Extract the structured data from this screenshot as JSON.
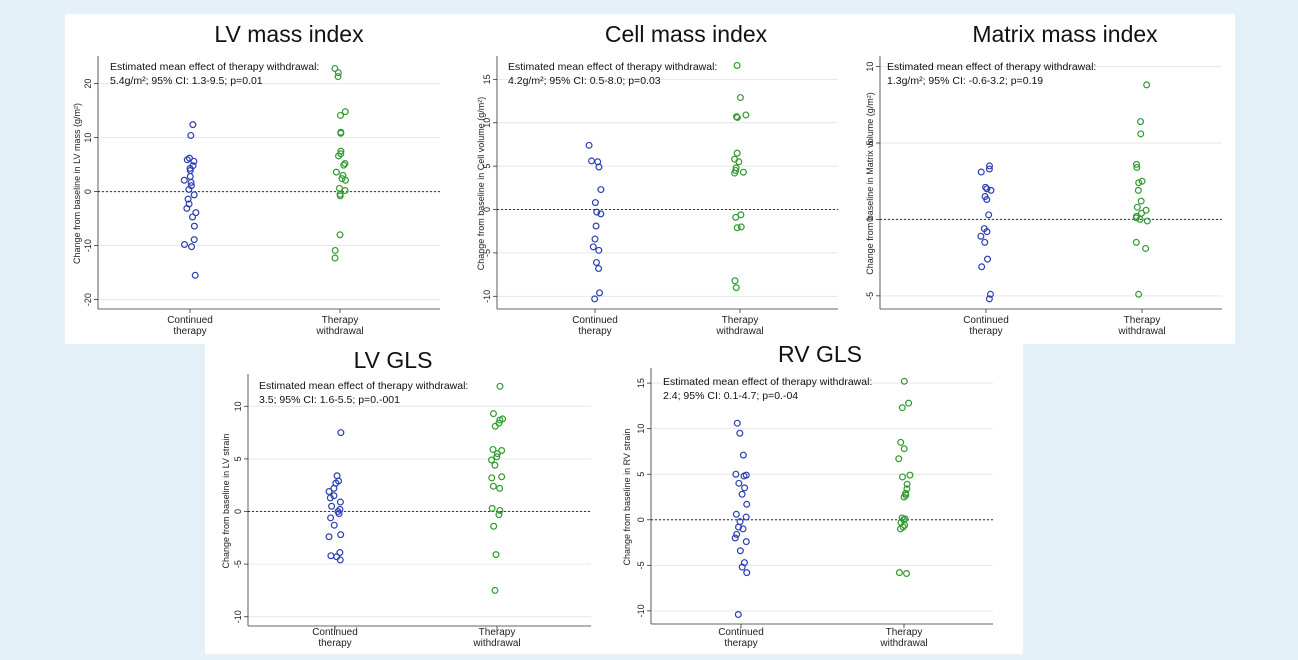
{
  "colors": {
    "page_background": "#e4f1f8",
    "panel_background": "#ffffff",
    "continued": "#2b3fb0",
    "withdrawal": "#2f9a2f",
    "gridline": "#e6e6e6",
    "zero_line": "#333333"
  },
  "chart_data": [
    {
      "type": "scatter",
      "title": "LV mass index",
      "ylabel": "Change from baseline in LV mass (g/m²)",
      "annotation_line1": "Estimated mean effect of therapy withdrawal:",
      "annotation_line2": "5.4g/m²; 95% CI: 1.3-9.5; p=0.01",
      "ylim": [
        -21,
        24
      ],
      "yticks": [
        -20,
        -10,
        0,
        10,
        20
      ],
      "zero_reference_line": true,
      "grid": true,
      "categories": [
        "Continued\ntherapy",
        "Therapy\nwithdrawal"
      ],
      "series": [
        {
          "color": "#2b3fb0",
          "values": [
            12.4,
            10.4,
            6.2,
            5.9,
            5.6,
            4.8,
            4.3,
            3.9,
            2.8,
            2.1,
            1.7,
            1.1,
            0.4,
            -0.6,
            -1.4,
            -2.3,
            -3.1,
            -3.9,
            -4.7,
            -6.4,
            -8.9,
            -9.8,
            -10.2,
            -15.5
          ]
        },
        {
          "color": "#2f9a2f",
          "values": [
            22.8,
            22.0,
            21.3,
            14.8,
            14.1,
            11.0,
            10.8,
            7.5,
            7.0,
            6.6,
            5.2,
            4.9,
            3.6,
            3.0,
            2.4,
            2.1,
            0.6,
            0.2,
            -0.5,
            -0.8,
            -8.0,
            -10.9,
            -12.3
          ]
        }
      ]
    },
    {
      "type": "scatter",
      "title": "Cell mass index",
      "ylabel": "Change from baseline in Cell volume (g/m²)",
      "annotation_line1": "Estimated mean effect of therapy withdrawal:",
      "annotation_line2": "4.2g/m²; 95% CI: 0.5-8.0; p=0.03",
      "ylim": [
        -11,
        17
      ],
      "yticks": [
        -10,
        -5,
        0,
        5,
        10,
        15
      ],
      "zero_reference_line": true,
      "grid": true,
      "categories": [
        "Continued\ntherapy",
        "Therapy\nwithdrawal"
      ],
      "series": [
        {
          "color": "#2b3fb0",
          "values": [
            7.4,
            5.6,
            5.5,
            4.9,
            2.3,
            0.8,
            -0.3,
            -0.5,
            -1.9,
            -3.4,
            -4.3,
            -4.7,
            -6.1,
            -6.8,
            -9.6,
            -10.3
          ]
        },
        {
          "color": "#2f9a2f",
          "values": [
            16.6,
            12.9,
            10.9,
            10.7,
            10.6,
            6.5,
            5.8,
            5.5,
            4.8,
            4.5,
            4.3,
            4.2,
            -0.6,
            -0.9,
            -2.0,
            -2.1,
            -8.2,
            -9.0
          ]
        }
      ]
    },
    {
      "type": "scatter",
      "title": "Matrix mass index",
      "ylabel": "Change from baseline in Matrix volume (g/m²)",
      "annotation_line1": "Estimated mean effect of therapy withdrawal:",
      "annotation_line2": "1.3g/m²; 95% CI: -0.6-3.2; p=0.19",
      "ylim": [
        -5.6,
        10.3
      ],
      "yticks": [
        -5,
        0,
        5,
        10
      ],
      "zero_reference_line": true,
      "grid": true,
      "categories": [
        "Continued\ntherapy",
        "Therapy\nwithdrawal"
      ],
      "series": [
        {
          "color": "#2b3fb0",
          "values": [
            3.5,
            3.3,
            3.1,
            2.1,
            2.0,
            1.9,
            1.5,
            1.3,
            0.3,
            -0.6,
            -0.8,
            -1.1,
            -1.5,
            -2.6,
            -3.1,
            -4.9,
            -5.2
          ]
        },
        {
          "color": "#2f9a2f",
          "values": [
            8.8,
            6.4,
            5.6,
            3.6,
            3.4,
            2.5,
            2.4,
            1.9,
            1.2,
            0.8,
            0.6,
            0.4,
            0.2,
            0.1,
            0.0,
            -0.1,
            -1.5,
            -1.9,
            -4.9
          ]
        }
      ]
    },
    {
      "type": "scatter",
      "title": "LV GLS",
      "ylabel": "Change from baseline in LV strain",
      "annotation_line1": "Estimated mean effect of therapy withdrawal:",
      "annotation_line2": "3.5; 95% CI: 1.6-5.5; p=0.-001",
      "ylim": [
        -10.5,
        12.5
      ],
      "yticks": [
        -10,
        -5,
        0,
        5,
        10
      ],
      "zero_reference_line": true,
      "grid": true,
      "categories": [
        "Continued\ntherapy",
        "Therapy\nwithdrawal"
      ],
      "series": [
        {
          "color": "#2b3fb0",
          "values": [
            7.5,
            3.4,
            2.9,
            2.7,
            2.2,
            1.9,
            1.5,
            1.3,
            0.9,
            0.5,
            0.2,
            0.0,
            -0.2,
            -0.6,
            -1.3,
            -2.2,
            -2.4,
            -3.9,
            -4.2,
            -4.3,
            -4.6
          ]
        },
        {
          "color": "#2f9a2f",
          "values": [
            11.9,
            9.3,
            8.8,
            8.7,
            8.4,
            8.1,
            5.9,
            5.8,
            5.5,
            5.2,
            4.9,
            4.4,
            3.3,
            3.2,
            2.4,
            2.2,
            0.3,
            0.1,
            -0.3,
            -1.4,
            -4.1,
            -7.5
          ]
        }
      ]
    },
    {
      "type": "scatter",
      "title": "RV GLS",
      "ylabel": "Change from baseline in RV strain",
      "annotation_line1": "Estimated mean effect of therapy withdrawal:",
      "annotation_line2": "2.4; 95% CI: 0.1-4.7; p=0.-04",
      "ylim": [
        -11,
        16
      ],
      "yticks": [
        -10,
        -5,
        0,
        5,
        10,
        15
      ],
      "zero_reference_line": true,
      "grid": true,
      "categories": [
        "Continued\ntherapy",
        "Therapy\nwithdrawal"
      ],
      "series": [
        {
          "color": "#2b3fb0",
          "values": [
            10.6,
            9.5,
            7.1,
            5.0,
            4.9,
            4.8,
            4.0,
            3.5,
            2.8,
            1.7,
            0.6,
            0.3,
            -0.2,
            -0.8,
            -1.0,
            -1.6,
            -2.0,
            -2.4,
            -3.4,
            -4.7,
            -5.2,
            -5.8,
            -10.4
          ]
        },
        {
          "color": "#2f9a2f",
          "values": [
            15.2,
            12.8,
            12.3,
            8.5,
            7.8,
            6.7,
            4.9,
            4.7,
            3.9,
            3.4,
            2.9,
            2.7,
            2.5,
            0.2,
            0.1,
            0.0,
            -0.3,
            -0.6,
            -0.8,
            -1.0,
            -5.8,
            -5.9
          ]
        }
      ]
    }
  ]
}
